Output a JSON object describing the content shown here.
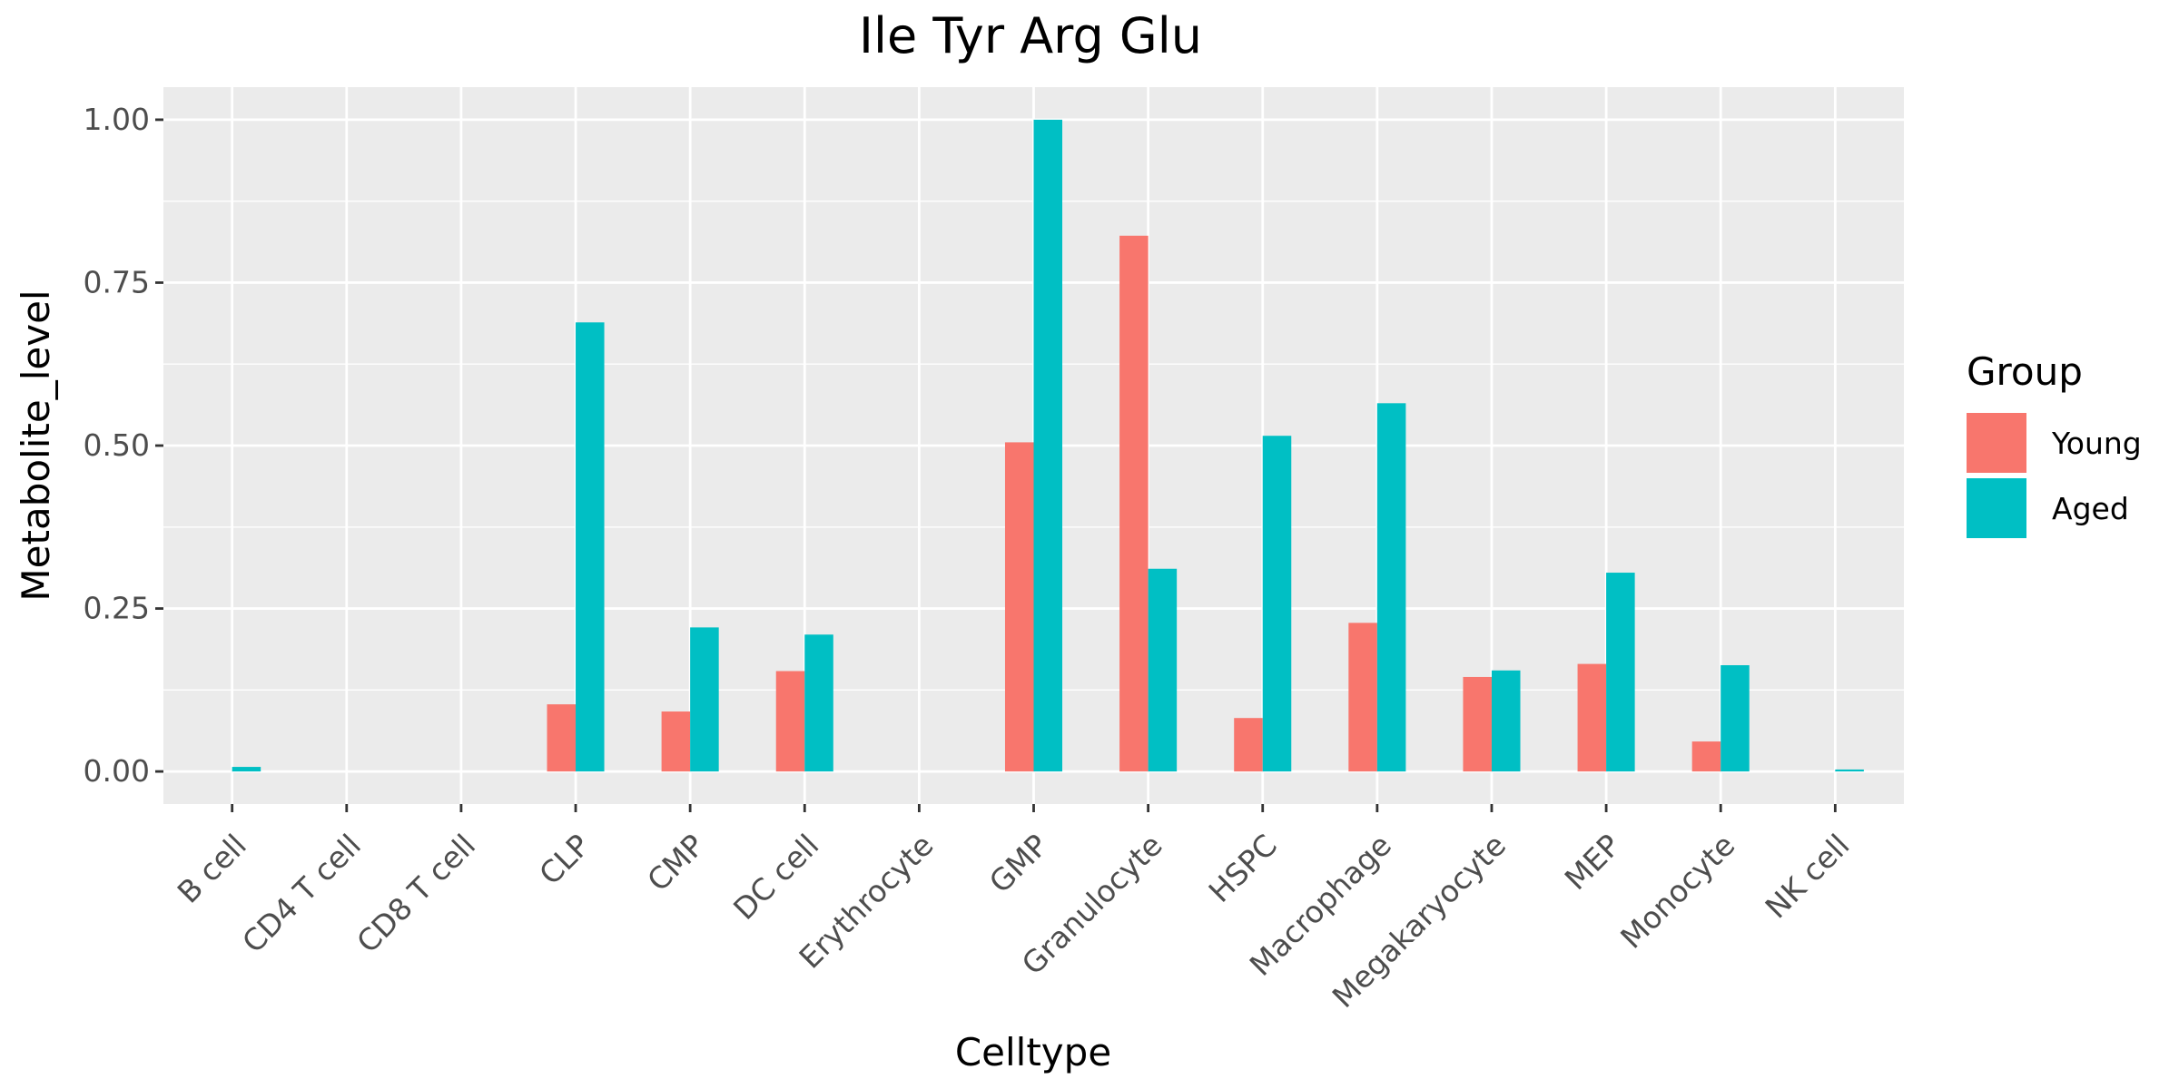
{
  "chart_data": {
    "type": "bar",
    "title": "Ile Tyr Arg Glu",
    "xlabel": "Celltype",
    "ylabel": "Metabolite_level",
    "ylim": [
      -0.05,
      1.05
    ],
    "yticks": [
      0.0,
      0.25,
      0.5,
      0.75,
      1.0
    ],
    "ytick_labels": [
      "0.00",
      "0.25",
      "0.50",
      "0.75",
      "1.00"
    ],
    "grid": true,
    "legend": {
      "title": "Group",
      "position": "right"
    },
    "categories": [
      "B cell",
      "CD4 T cell",
      "CD8 T cell",
      "CLP",
      "CMP",
      "DC cell",
      "Erythrocyte",
      "GMP",
      "Granulocyte",
      "HSPC",
      "Macrophage",
      "Megakaryocyte",
      "MEP",
      "Monocyte",
      "NK cell"
    ],
    "series": [
      {
        "name": "Young",
        "color": "#F8766D",
        "values": [
          0,
          0,
          0,
          0.103,
          0.092,
          0.154,
          0,
          0.505,
          0.822,
          0.082,
          0.228,
          0.145,
          0.165,
          0.046,
          0
        ]
      },
      {
        "name": "Aged",
        "color": "#00BFC4",
        "values": [
          0.007,
          0,
          0,
          0.689,
          0.221,
          0.21,
          0,
          1.0,
          0.311,
          0.515,
          0.565,
          0.155,
          0.305,
          0.163,
          0.003
        ]
      }
    ]
  }
}
